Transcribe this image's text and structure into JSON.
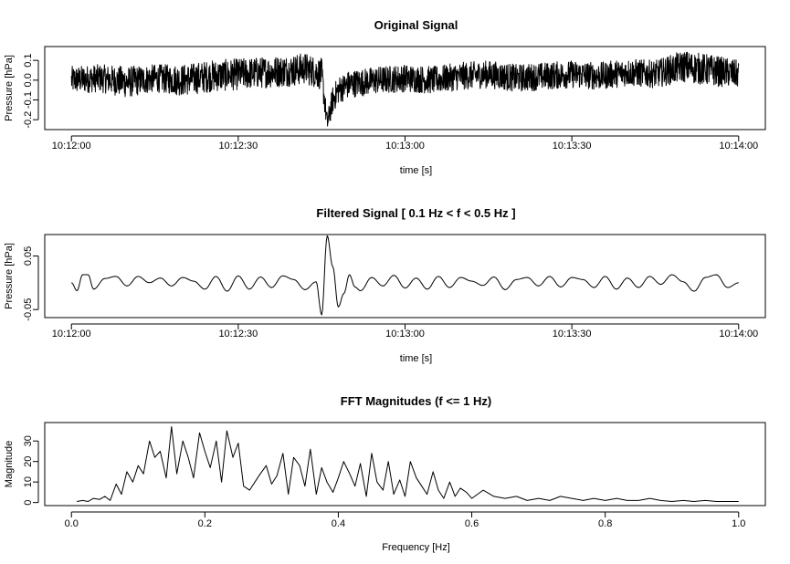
{
  "chart_data": [
    {
      "type": "line",
      "title": "Original Signal",
      "xlabel": "time [s]",
      "ylabel": "Pressure [hPa]",
      "xlim": [
        "10:12:00",
        "10:14:00"
      ],
      "ylim": [
        -0.25,
        0.17
      ],
      "x_ticks": [
        "10:12:00",
        "10:12:30",
        "10:13:00",
        "10:13:30",
        "10:14:00"
      ],
      "y_ticks": [
        "-0.2",
        "-0.1",
        "0.0",
        "0.1"
      ],
      "series": [
        {
          "x": [
            "10:12:00",
            "10:12:05",
            "10:12:10",
            "10:12:15",
            "10:12:20",
            "10:12:25",
            "10:12:30",
            "10:12:35",
            "10:12:40",
            "10:12:42",
            "10:12:45",
            "10:12:46",
            "10:12:47",
            "10:12:48",
            "10:12:50",
            "10:12:55",
            "10:13:00",
            "10:13:05",
            "10:13:10",
            "10:13:15",
            "10:13:20",
            "10:13:25",
            "10:13:30",
            "10:13:35",
            "10:13:40",
            "10:13:45",
            "10:13:50",
            "10:13:55",
            "10:14:00"
          ],
          "y": [
            0.0,
            0.01,
            -0.01,
            0.01,
            0.0,
            0.02,
            0.03,
            0.04,
            0.05,
            0.06,
            0.03,
            -0.22,
            -0.1,
            -0.05,
            -0.02,
            0.0,
            0.01,
            0.0,
            0.02,
            0.03,
            0.01,
            0.02,
            0.03,
            0.02,
            0.04,
            0.03,
            0.07,
            0.05,
            0.03
          ],
          "band": [
            0.07,
            0.07,
            0.08,
            0.07,
            0.08,
            0.08,
            0.08,
            0.08,
            0.08,
            0.08,
            0.08,
            0.05,
            0.07,
            0.07,
            0.07,
            0.07,
            0.07,
            0.07,
            0.07,
            0.07,
            0.07,
            0.07,
            0.07,
            0.07,
            0.07,
            0.07,
            0.08,
            0.08,
            0.07
          ]
        }
      ]
    },
    {
      "type": "line",
      "title": "Filtered Signal [ 0.1 Hz < f < 0.5 Hz ]",
      "xlabel": "time [s]",
      "ylabel": "Pressure [hPa]",
      "xlim": [
        "10:12:00",
        "10:14:00"
      ],
      "ylim": [
        -0.065,
        0.09
      ],
      "x_ticks": [
        "10:12:00",
        "10:12:30",
        "10:13:00",
        "10:13:30",
        "10:14:00"
      ],
      "y_ticks": [
        "-0.05",
        "0.05"
      ],
      "series": [
        {
          "x": [
            "10:12:00",
            "10:12:01",
            "10:12:02",
            "10:12:03",
            "10:12:04",
            "10:12:06",
            "10:12:08",
            "10:12:10",
            "10:12:12",
            "10:12:14",
            "10:12:16",
            "10:12:18",
            "10:12:20",
            "10:12:22",
            "10:12:24",
            "10:12:26",
            "10:12:28",
            "10:12:30",
            "10:12:32",
            "10:12:34",
            "10:12:36",
            "10:12:38",
            "10:12:40",
            "10:12:42",
            "10:12:44",
            "10:12:45",
            "10:12:46",
            "10:12:47",
            "10:12:48",
            "10:12:49",
            "10:12:50",
            "10:12:51",
            "10:12:52",
            "10:12:54",
            "10:12:56",
            "10:12:58",
            "10:13:00",
            "10:13:02",
            "10:13:04",
            "10:13:06",
            "10:13:08",
            "10:13:10",
            "10:13:12",
            "10:13:14",
            "10:13:16",
            "10:13:18",
            "10:13:20",
            "10:13:22",
            "10:13:24",
            "10:13:26",
            "10:13:28",
            "10:13:30",
            "10:13:32",
            "10:13:34",
            "10:13:36",
            "10:13:38",
            "10:13:40",
            "10:13:42",
            "10:13:44",
            "10:13:46",
            "10:13:48",
            "10:13:50",
            "10:13:52",
            "10:13:54",
            "10:13:56",
            "10:13:58",
            "10:14:00"
          ],
          "y": [
            0.0,
            -0.015,
            0.015,
            0.015,
            -0.012,
            0.008,
            0.012,
            -0.006,
            0.012,
            0.0,
            0.009,
            -0.006,
            0.01,
            0.003,
            -0.012,
            0.012,
            -0.016,
            0.013,
            -0.012,
            0.011,
            -0.009,
            0.013,
            0.006,
            -0.013,
            0.002,
            -0.06,
            0.088,
            0.03,
            -0.045,
            -0.02,
            0.015,
            -0.008,
            -0.015,
            0.01,
            -0.006,
            0.014,
            -0.01,
            0.009,
            -0.012,
            0.012,
            -0.009,
            0.01,
            0.003,
            -0.005,
            0.011,
            -0.013,
            0.006,
            0.01,
            -0.006,
            0.012,
            -0.008,
            0.01,
            0.006,
            -0.009,
            0.012,
            -0.012,
            0.009,
            -0.009,
            0.012,
            -0.003,
            0.015,
            0.002,
            -0.016,
            0.01,
            0.015,
            -0.009,
            0.0
          ]
        }
      ]
    },
    {
      "type": "line",
      "title": "FFT Magnitudes (f <=  1 Hz)",
      "xlabel": "Frequency [Hz]",
      "ylabel": "Magnitude",
      "xlim": [
        -0.04,
        1.04
      ],
      "ylim": [
        -1.5,
        39
      ],
      "x_ticks": [
        0.0,
        0.2,
        0.4,
        0.6,
        0.8,
        1.0
      ],
      "x_tick_labels": [
        "0.0",
        "0.2",
        "0.4",
        "0.6",
        "0.8",
        "1.0"
      ],
      "y_ticks": [
        0,
        10,
        20,
        30
      ],
      "y_tick_labels": [
        "0",
        "10",
        "20",
        "30"
      ],
      "series": [
        {
          "x": [
            0.008,
            0.017,
            0.025,
            0.033,
            0.042,
            0.05,
            0.058,
            0.067,
            0.075,
            0.083,
            0.092,
            0.1,
            0.108,
            0.117,
            0.125,
            0.133,
            0.142,
            0.15,
            0.158,
            0.167,
            0.175,
            0.183,
            0.192,
            0.2,
            0.208,
            0.217,
            0.225,
            0.233,
            0.242,
            0.25,
            0.258,
            0.267,
            0.275,
            0.283,
            0.292,
            0.3,
            0.308,
            0.317,
            0.325,
            0.333,
            0.342,
            0.35,
            0.358,
            0.367,
            0.375,
            0.383,
            0.392,
            0.4,
            0.408,
            0.417,
            0.425,
            0.433,
            0.442,
            0.45,
            0.458,
            0.467,
            0.475,
            0.483,
            0.492,
            0.5,
            0.508,
            0.517,
            0.525,
            0.533,
            0.542,
            0.55,
            0.558,
            0.567,
            0.575,
            0.583,
            0.592,
            0.6,
            0.617,
            0.633,
            0.65,
            0.667,
            0.683,
            0.7,
            0.717,
            0.733,
            0.75,
            0.767,
            0.783,
            0.8,
            0.817,
            0.833,
            0.85,
            0.867,
            0.883,
            0.9,
            0.917,
            0.933,
            0.95,
            0.967,
            0.983,
            1.0
          ],
          "y": [
            0.5,
            1,
            0.5,
            2,
            1.5,
            3,
            1,
            9,
            4,
            15,
            10,
            18,
            14,
            30,
            22,
            25,
            12,
            37,
            14,
            30,
            22,
            12,
            34,
            25,
            17,
            30,
            10,
            35,
            22,
            29,
            8,
            6,
            10,
            14,
            18,
            9,
            13,
            24,
            4,
            22,
            18,
            8,
            26,
            4,
            17,
            10,
            5,
            12,
            20,
            14,
            8,
            19,
            3,
            24,
            10,
            6,
            20,
            4,
            11,
            3,
            20,
            12,
            8,
            4,
            15,
            6,
            2,
            10,
            3,
            7,
            5,
            2,
            6,
            3,
            2,
            3,
            1,
            2,
            1,
            3,
            2,
            1,
            2,
            1,
            2,
            1,
            1,
            2,
            1,
            0.5,
            1,
            0.5,
            1,
            0.5,
            0.5,
            0.5
          ]
        }
      ]
    }
  ]
}
